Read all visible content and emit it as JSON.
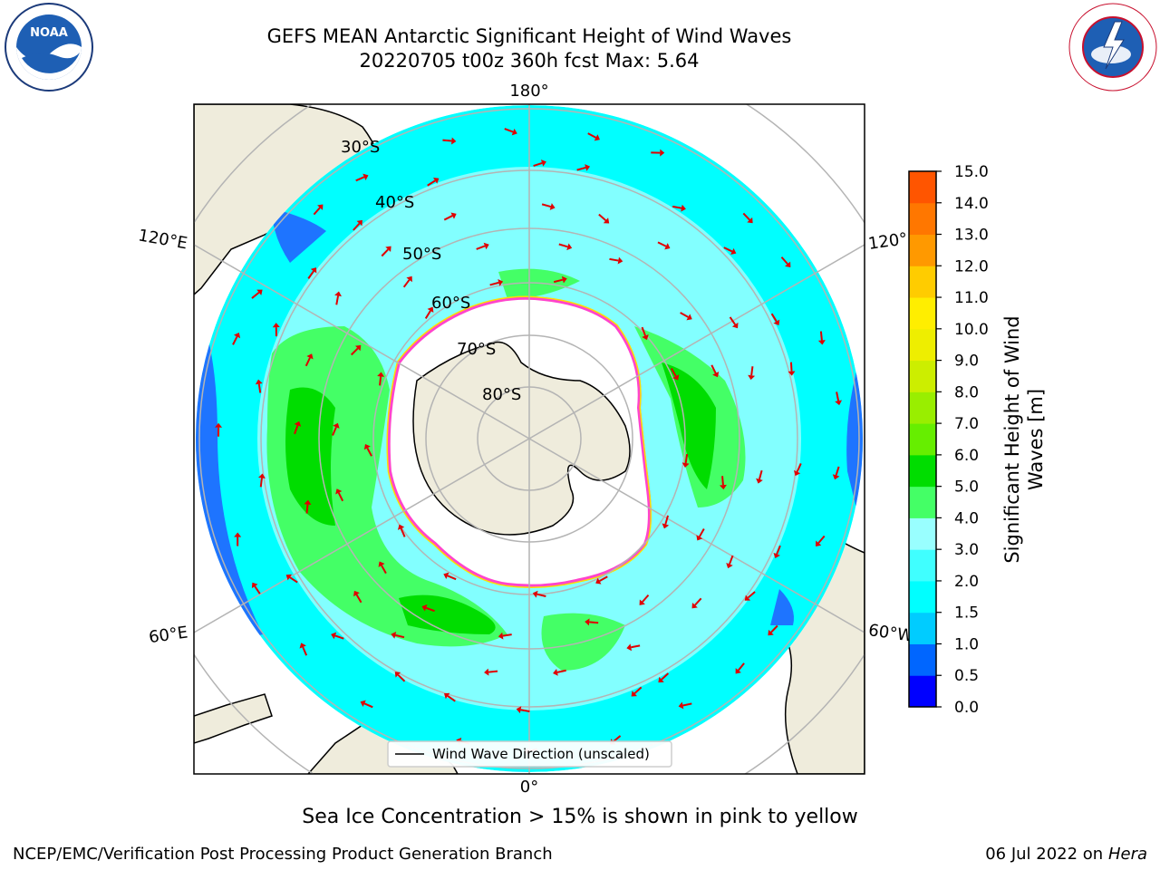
{
  "title_line1": "GEFS MEAN Antarctic Significant Height of Wind Waves",
  "title_line2": "20220705 t00z 360h fcst   Max: 5.64",
  "logos": {
    "left": "NOAA",
    "right": "NATIONAL WEATHER SERVICE"
  },
  "lon_labels": {
    "top": "180°",
    "bottom": "0°",
    "upper_left": "120°E",
    "lower_left": "60°E",
    "upper_right": "120°",
    "lower_right": "60°W"
  },
  "lat_labels": [
    "30°S",
    "40°S",
    "50°S",
    "60°S",
    "70°S",
    "80°S"
  ],
  "legend": {
    "label": "Wind Wave Direction (unscaled)"
  },
  "colorbar": {
    "title_line1": "Significant Height of Wind",
    "title_line2": "Waves [m]",
    "ticks": [
      "15.0",
      "14.0",
      "13.0",
      "12.0",
      "11.0",
      "10.0",
      "9.0",
      "8.0",
      "7.0",
      "6.0",
      "5.0",
      "4.0",
      "3.0",
      "2.0",
      "1.5",
      "1.0",
      "0.5",
      "0.0"
    ],
    "colors": [
      "#0000ff",
      "#0066ff",
      "#00ccff",
      "#00ffff",
      "#40ffff",
      "#99ffff",
      "#44ff66",
      "#00dd00",
      "#66ee00",
      "#99ee00",
      "#ccee00",
      "#eeee00",
      "#ffee00",
      "#ffcc00",
      "#ff9900",
      "#ff7700",
      "#ff5500",
      "#ff2200",
      "#ff0000"
    ]
  },
  "sea_ice_note": "Sea Ice Concentration > 15% is shown in pink to yellow",
  "credit": "NCEP/EMC/Verification Post Processing Product Generation Branch",
  "date_text": "06 Jul 2022 on ",
  "date_machine": "Hera"
}
